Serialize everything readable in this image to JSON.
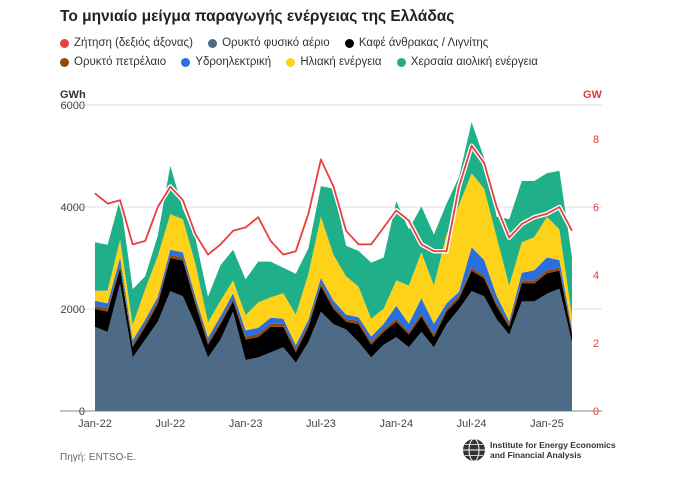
{
  "title": "Το μηνιαίο μείγμα παραγωγής ενέργειας της Ελλάδας",
  "left_unit": "GWh",
  "right_unit": "GW",
  "source": "Πηγή: ENTSO-E.",
  "logo_line1": "Institute for Energy Economics",
  "logo_line2": "and Financial Analysis",
  "legend": [
    {
      "label": "Ζήτηση (δεξιός άξονας)",
      "color": "#e83f3f"
    },
    {
      "label": "Ορυκτό φυσικό αέριο",
      "color": "#4d6a87"
    },
    {
      "label": "Καφέ άνθρακας / Λιγνίτης",
      "color": "#000000"
    },
    {
      "label": "Ορυκτό πετρέλαιο",
      "color": "#8b4a12"
    },
    {
      "label": "Υδροηλεκτρική",
      "color": "#2a6fe0"
    },
    {
      "label": "Ηλιακή ενέργεια",
      "color": "#ffd21a"
    },
    {
      "label": "Χερσαία αιολική ενέργεια",
      "color": "#1fb08a"
    }
  ],
  "chart_data": {
    "type": "area",
    "stacked": true,
    "x": [
      "Jan-22",
      "Feb-22",
      "Mar-22",
      "Apr-22",
      "May-22",
      "Jun-22",
      "Jul-22",
      "Aug-22",
      "Sep-22",
      "Oct-22",
      "Nov-22",
      "Dec-22",
      "Jan-23",
      "Feb-23",
      "Mar-23",
      "Apr-23",
      "May-23",
      "Jun-23",
      "Jul-23",
      "Aug-23",
      "Sep-23",
      "Oct-23",
      "Nov-23",
      "Dec-23",
      "Jan-24",
      "Feb-24",
      "Mar-24",
      "Apr-24",
      "May-24",
      "Jun-24",
      "Jul-24",
      "Aug-24",
      "Sep-24",
      "Oct-24",
      "Nov-24",
      "Dec-24",
      "Jan-25",
      "Feb-25",
      "Mar-25"
    ],
    "x_tick_labels": [
      "Jan-22",
      "Jul-22",
      "Jan-23",
      "Jul-23",
      "Jan-24",
      "Jul-24",
      "Jan-25"
    ],
    "ylim_left": [
      0,
      6000
    ],
    "yticks_left": [
      0,
      2000,
      4000,
      6000
    ],
    "ylim_right": [
      0,
      9
    ],
    "yticks_right": [
      0,
      2,
      4,
      6,
      8
    ],
    "grid": true,
    "series": [
      {
        "name": "Ορυκτό φυσικό αέριο",
        "color": "#4d6a87",
        "values": [
          1650,
          1550,
          2500,
          1050,
          1400,
          1750,
          2350,
          2250,
          1700,
          1050,
          1400,
          1950,
          1000,
          1050,
          1150,
          1250,
          950,
          1350,
          1950,
          1700,
          1600,
          1350,
          1050,
          1300,
          1450,
          1250,
          1550,
          1250,
          1700,
          2000,
          2350,
          2250,
          1800,
          1500,
          2150,
          2150,
          2300,
          2400,
          1350
        ]
      },
      {
        "name": "Καφέ άνθρακας / Λιγνίτης",
        "color": "#000000",
        "values": [
          350,
          400,
          300,
          200,
          250,
          350,
          650,
          700,
          400,
          250,
          300,
          200,
          400,
          400,
          500,
          400,
          200,
          300,
          500,
          300,
          150,
          350,
          250,
          250,
          300,
          250,
          300,
          200,
          250,
          200,
          400,
          350,
          250,
          150,
          350,
          350,
          400,
          350,
          150
        ]
      },
      {
        "name": "Ορυκτό πετρέλαιο",
        "color": "#8b4a12",
        "values": [
          60,
          60,
          60,
          60,
          60,
          60,
          60,
          60,
          60,
          60,
          60,
          60,
          60,
          60,
          60,
          60,
          60,
          60,
          60,
          60,
          60,
          60,
          60,
          60,
          60,
          60,
          60,
          60,
          60,
          60,
          60,
          60,
          60,
          60,
          60,
          60,
          60,
          60,
          60
        ]
      },
      {
        "name": "Υδροηλεκτρική",
        "color": "#2a6fe0",
        "values": [
          100,
          100,
          150,
          80,
          80,
          80,
          100,
          100,
          80,
          80,
          100,
          100,
          120,
          120,
          120,
          100,
          80,
          80,
          100,
          100,
          80,
          80,
          100,
          100,
          250,
          150,
          300,
          200,
          100,
          80,
          400,
          300,
          150,
          50,
          150,
          200,
          250,
          150,
          50
        ]
      },
      {
        "name": "Ηλιακή ενέργεια",
        "color": "#ffd21a",
        "values": [
          200,
          250,
          350,
          300,
          600,
          800,
          700,
          650,
          650,
          300,
          300,
          250,
          300,
          500,
          400,
          500,
          600,
          900,
          1200,
          900,
          750,
          600,
          350,
          300,
          500,
          750,
          900,
          750,
          1350,
          1700,
          1450,
          1400,
          1150,
          700,
          600,
          650,
          800,
          600,
          250
        ]
      },
      {
        "name": "Χερσαία αιολική ενέργεια",
        "color": "#1fb08a",
        "values": [
          950,
          900,
          800,
          700,
          250,
          400,
          950,
          200,
          500,
          500,
          700,
          600,
          700,
          800,
          700,
          500,
          800,
          500,
          600,
          1300,
          600,
          700,
          1100,
          1000,
          1550,
          1100,
          900,
          1000,
          600,
          550,
          1000,
          600,
          400,
          1300,
          1200,
          1100,
          850,
          1150,
          1150
        ]
      },
      {
        "name": "Ζήτηση (δεξιός άξονας)",
        "color": "#e83f3f",
        "axis": "right",
        "values": [
          6.4,
          6.1,
          6.2,
          4.9,
          5.0,
          6.0,
          6.6,
          6.2,
          5.2,
          4.6,
          4.9,
          5.3,
          5.4,
          5.7,
          5.0,
          4.6,
          4.7,
          5.8,
          7.4,
          6.6,
          5.3,
          4.9,
          4.9,
          5.4,
          5.9,
          5.6,
          4.9,
          4.7,
          4.7,
          6.6,
          7.8,
          7.3,
          6.0,
          5.1,
          5.5,
          5.7,
          5.8,
          6.0,
          5.3
        ]
      }
    ]
  }
}
